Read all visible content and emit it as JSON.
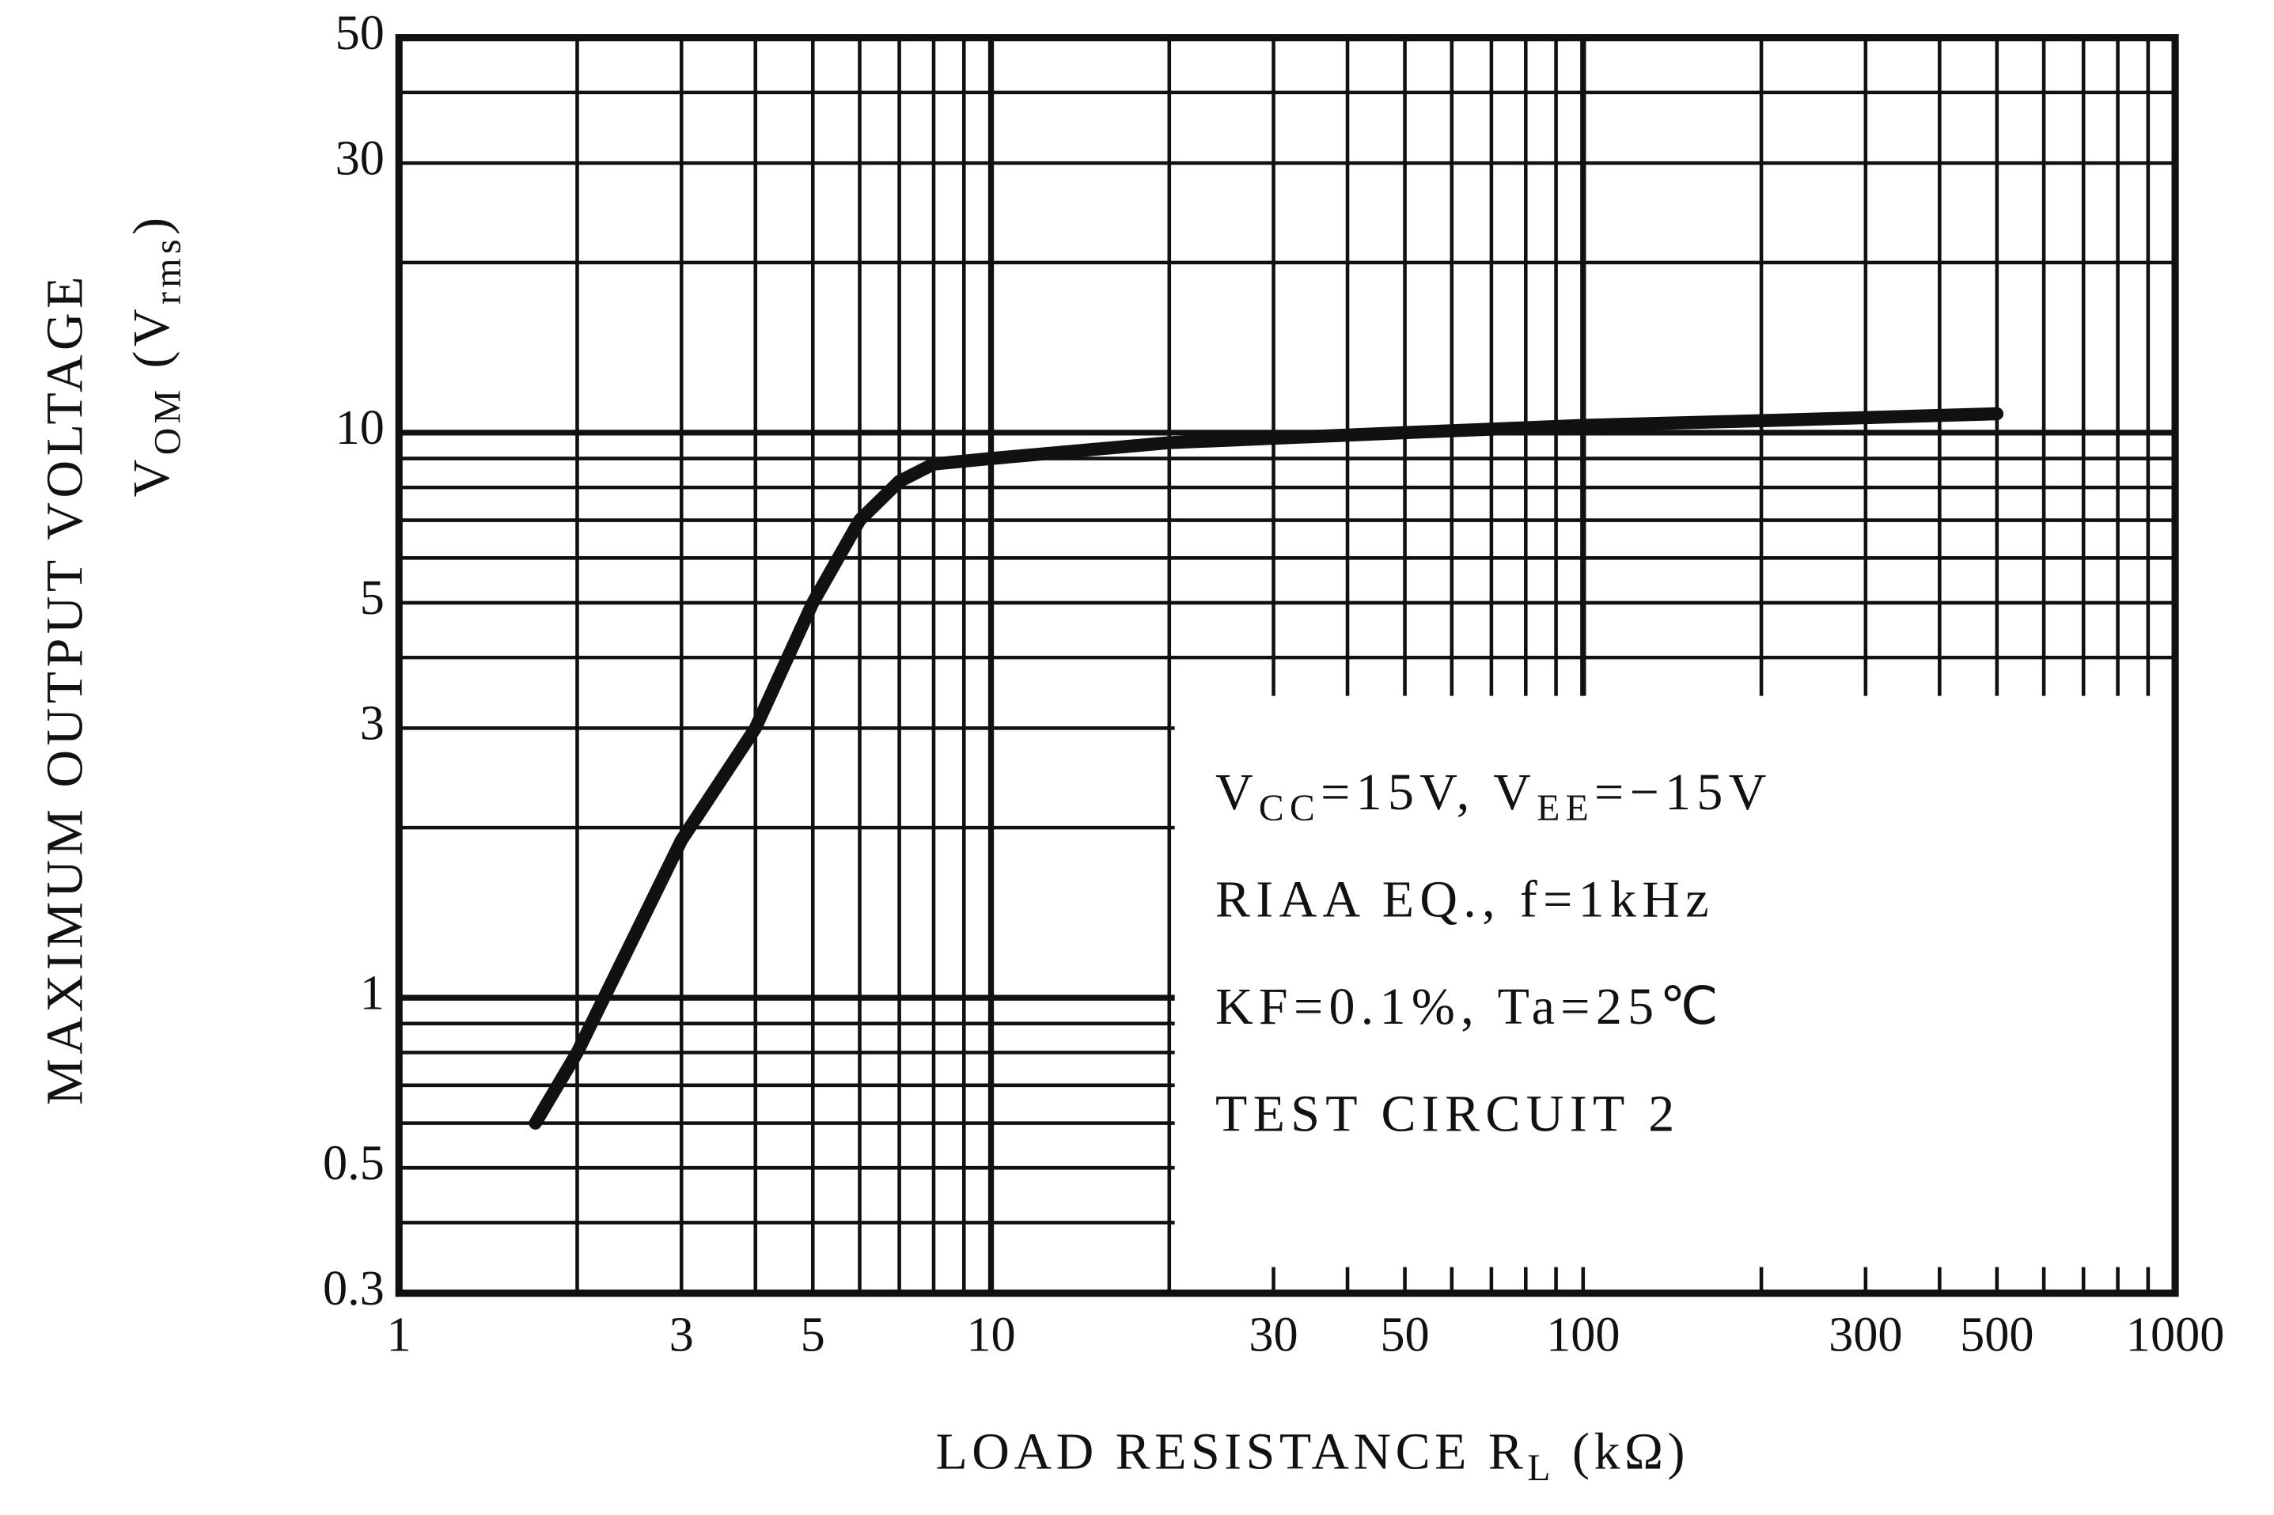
{
  "chart_data": {
    "type": "line",
    "x_label": [
      {
        "text": "LOAD RESISTANCE  R"
      },
      {
        "text": "L",
        "sub": true
      },
      {
        "text": "  (kΩ)"
      }
    ],
    "y_label": [
      {
        "text": "MAXIMUM OUTPUT VOLTAGE"
      }
    ],
    "y_label2": [
      {
        "text": "V"
      },
      {
        "text": "OM",
        "sub": true
      },
      {
        "text": " (V"
      },
      {
        "text": "rms",
        "sub": true
      },
      {
        "text": ")"
      }
    ],
    "annotations": [
      [
        {
          "text": "V"
        },
        {
          "text": "CC",
          "sub": true
        },
        {
          "text": "=15V,  V"
        },
        {
          "text": "EE",
          "sub": true
        },
        {
          "text": "=−15V"
        }
      ],
      [
        {
          "text": "RIAA EQ.,  f=1kHz"
        }
      ],
      [
        {
          "text": "KF=0.1%,  Ta=25℃"
        }
      ],
      [
        {
          "text": "TEST CIRCUIT 2"
        }
      ]
    ],
    "log_x": true,
    "log_y": true,
    "grid": true,
    "xlim": [
      1,
      1000
    ],
    "ylim": [
      0.3,
      50
    ],
    "xticks": [
      1,
      3,
      5,
      10,
      30,
      50,
      100,
      300,
      500,
      1000
    ],
    "yticks": [
      0.3,
      0.5,
      1,
      3,
      5,
      10,
      30,
      50
    ],
    "xgrid": [
      2,
      3,
      4,
      5,
      6,
      7,
      8,
      9,
      10,
      20,
      30,
      40,
      50,
      60,
      70,
      80,
      90,
      100,
      200,
      300,
      400,
      500,
      600,
      700,
      800,
      900
    ],
    "ygrid": [
      0.4,
      0.5,
      0.6,
      0.7,
      0.8,
      0.9,
      1,
      2,
      3,
      4,
      5,
      6,
      7,
      8,
      9,
      10,
      20,
      30,
      40
    ],
    "series": [
      {
        "name": "VOM",
        "color": "#111111",
        "x": [
          1.7,
          2,
          3,
          4,
          5,
          6,
          7,
          8,
          10,
          20,
          50,
          100,
          200,
          500
        ],
        "values": [
          0.6,
          0.8,
          1.9,
          3,
          5,
          7,
          8.2,
          8.8,
          9,
          9.6,
          10,
          10.3,
          10.5,
          10.8
        ]
      }
    ]
  }
}
